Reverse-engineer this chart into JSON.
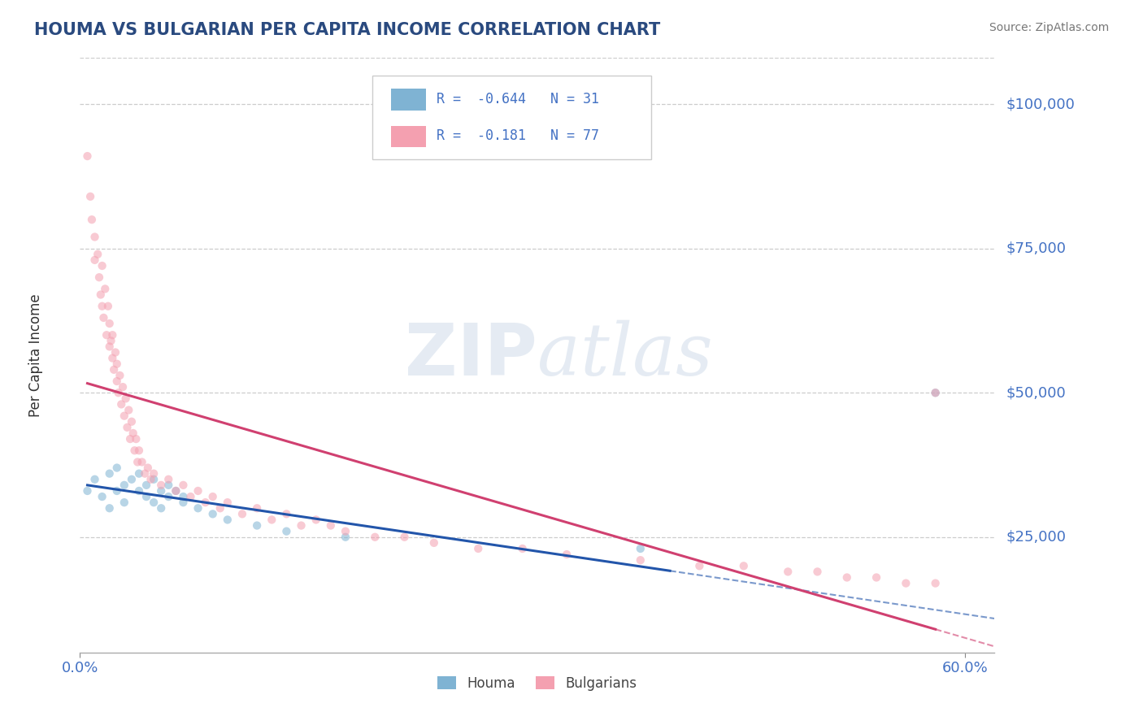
{
  "title": "HOUMA VS BULGARIAN PER CAPITA INCOME CORRELATION CHART",
  "source": "Source: ZipAtlas.com",
  "ylabel": "Per Capita Income",
  "ytick_labels": [
    "$25,000",
    "$50,000",
    "$75,000",
    "$100,000"
  ],
  "ytick_values": [
    25000,
    50000,
    75000,
    100000
  ],
  "xlim": [
    0.0,
    0.62
  ],
  "ylim": [
    5000,
    108000
  ],
  "legend_entries": [
    {
      "label": "R =  -0.644   N = 31",
      "color": "#aac4e0"
    },
    {
      "label": "R =  -0.181   N = 77",
      "color": "#f5b8c4"
    }
  ],
  "title_color": "#2a4a7f",
  "source_color": "#777777",
  "ytick_color": "#4472c4",
  "xtick_color": "#4472c4",
  "legend_text_color": "#4472c4",
  "houma_scatter_x": [
    0.005,
    0.01,
    0.015,
    0.02,
    0.02,
    0.025,
    0.025,
    0.03,
    0.03,
    0.035,
    0.04,
    0.04,
    0.045,
    0.045,
    0.05,
    0.05,
    0.055,
    0.055,
    0.06,
    0.06,
    0.065,
    0.07,
    0.07,
    0.08,
    0.09,
    0.1,
    0.12,
    0.14,
    0.18,
    0.38,
    0.58
  ],
  "houma_scatter_y": [
    33000,
    35000,
    32000,
    36000,
    30000,
    37000,
    33000,
    34000,
    31000,
    35000,
    33000,
    36000,
    32000,
    34000,
    31000,
    35000,
    30000,
    33000,
    32000,
    34000,
    33000,
    31000,
    32000,
    30000,
    29000,
    28000,
    27000,
    26000,
    25000,
    23000,
    50000
  ],
  "bulgarian_scatter_x": [
    0.005,
    0.007,
    0.008,
    0.01,
    0.01,
    0.012,
    0.013,
    0.014,
    0.015,
    0.015,
    0.016,
    0.017,
    0.018,
    0.019,
    0.02,
    0.02,
    0.021,
    0.022,
    0.022,
    0.023,
    0.024,
    0.025,
    0.025,
    0.026,
    0.027,
    0.028,
    0.029,
    0.03,
    0.031,
    0.032,
    0.033,
    0.034,
    0.035,
    0.036,
    0.037,
    0.038,
    0.039,
    0.04,
    0.042,
    0.044,
    0.046,
    0.048,
    0.05,
    0.055,
    0.06,
    0.065,
    0.07,
    0.075,
    0.08,
    0.085,
    0.09,
    0.095,
    0.1,
    0.11,
    0.12,
    0.13,
    0.14,
    0.15,
    0.16,
    0.17,
    0.18,
    0.2,
    0.22,
    0.24,
    0.27,
    0.3,
    0.33,
    0.38,
    0.42,
    0.45,
    0.48,
    0.5,
    0.52,
    0.54,
    0.56,
    0.58,
    0.58
  ],
  "bulgarian_scatter_y": [
    91000,
    84000,
    80000,
    77000,
    73000,
    74000,
    70000,
    67000,
    72000,
    65000,
    63000,
    68000,
    60000,
    65000,
    58000,
    62000,
    59000,
    56000,
    60000,
    54000,
    57000,
    52000,
    55000,
    50000,
    53000,
    48000,
    51000,
    46000,
    49000,
    44000,
    47000,
    42000,
    45000,
    43000,
    40000,
    42000,
    38000,
    40000,
    38000,
    36000,
    37000,
    35000,
    36000,
    34000,
    35000,
    33000,
    34000,
    32000,
    33000,
    31000,
    32000,
    30000,
    31000,
    29000,
    30000,
    28000,
    29000,
    27000,
    28000,
    27000,
    26000,
    25000,
    25000,
    24000,
    23000,
    23000,
    22000,
    21000,
    20000,
    20000,
    19000,
    19000,
    18000,
    18000,
    17000,
    17000,
    50000
  ],
  "houma_color": "#7fb3d3",
  "bulgarian_color": "#f4a0b0",
  "houma_line_color": "#2255aa",
  "bulgarian_line_color": "#d04070",
  "grid_color": "#cccccc",
  "scatter_size": 55,
  "scatter_alpha": 0.55
}
